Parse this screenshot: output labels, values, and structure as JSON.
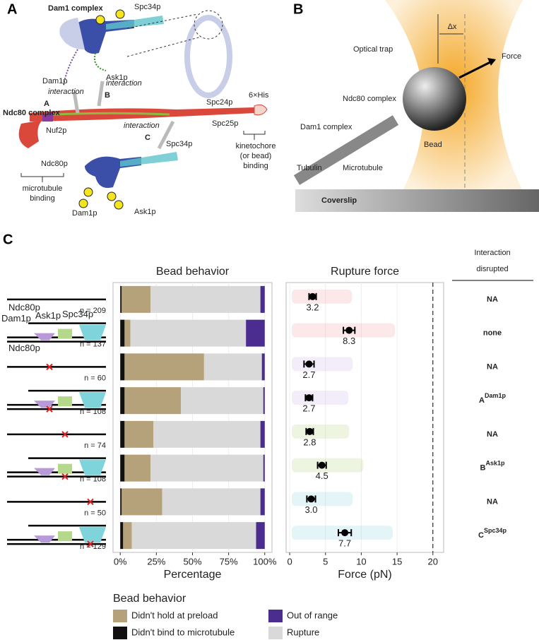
{
  "panel_a": {
    "letter": "A",
    "dam1_complex": "Dam1 complex",
    "spc34p_top": "Spc34p",
    "dam1p_top": "Dam1p",
    "ask1p_top": "Ask1p",
    "interaction_a": "interaction",
    "letter_a": "A",
    "interaction_b": "interaction",
    "letter_b": "B",
    "interaction_c": "interaction",
    "letter_c": "C",
    "ndc80_complex": "Ndc80 complex",
    "nuf2p": "Nuf2p",
    "ndc80p": "Ndc80p",
    "spc24p": "Spc24p",
    "spc25p": "Spc25p",
    "his": "6×His",
    "mt_binding": [
      "microtubule",
      "binding"
    ],
    "kt_binding": [
      "kinetochore",
      "(or bead)",
      "binding"
    ],
    "spc34p_bottom": "Spc34p",
    "dam1p_bottom": "Dam1p",
    "ask1p_bottom": "Ask1p"
  },
  "panel_b": {
    "letter": "B",
    "optical_trap": "Optical trap",
    "dx": "Δx",
    "force": "Force",
    "ndc80_complex": "Ndc80 complex",
    "dam1_complex": "Dam1 complex",
    "bead": "Bead",
    "tubulin": "Tubulin",
    "microtubule": "Microtubule",
    "coverslip": "Coverslip"
  },
  "panel_c": {
    "letter": "C",
    "construct_labels": {
      "ndc80p": "Ndc80p",
      "dam1p": "Dam1p",
      "ask1p": "Ask1p",
      "spc34p": "Spc34p",
      "ndc80p_2": "Ndc80p"
    },
    "interaction_title": [
      "Interaction",
      "disrupted"
    ],
    "interaction": [
      {
        "main": "NA"
      },
      {
        "main": "none"
      },
      {
        "main": "NA"
      },
      {
        "main": "A",
        "sup": "Dam1p"
      },
      {
        "main": "NA"
      },
      {
        "main": "B",
        "sup": "Ask1p"
      },
      {
        "main": "NA"
      },
      {
        "main": "C",
        "sup": "Spc34p"
      }
    ],
    "interaction_colors": [
      "#000",
      "#000",
      "#000",
      "#a98bd4",
      "#000",
      "#8dbb3f",
      "#000",
      "#5ec4cc"
    ]
  },
  "chart_data": [
    {
      "type": "stacked_barh",
      "title": "Bead behavior",
      "xlabel": "Percentage",
      "categories": [
        "n = 209",
        "n = 137",
        "n = 60",
        "n = 108",
        "n = 74",
        "n = 108",
        "n = 50",
        "n = 129"
      ],
      "series": [
        {
          "name": "Didn't bind to microtubule",
          "color": "#111111",
          "values": [
            1,
            3,
            3,
            3,
            3,
            3,
            1,
            2
          ]
        },
        {
          "name": "Didn't hold at preload",
          "color": "#b5a27a",
          "values": [
            20,
            4,
            55,
            39,
            20,
            18,
            28,
            6
          ]
        },
        {
          "name": "Rupture",
          "color": "#d9d9d9",
          "values": [
            76,
            80,
            40,
            57,
            74,
            78,
            68,
            86
          ]
        },
        {
          "name": "Out of range",
          "color": "#4b2d8f",
          "values": [
            3,
            13,
            2,
            1,
            3,
            1,
            3,
            6
          ]
        }
      ],
      "xlim": [
        -5,
        105
      ],
      "xticks": [
        {
          "value": 0,
          "label": "0%"
        },
        {
          "value": 25,
          "label": "25%"
        },
        {
          "value": 50,
          "label": "50%"
        },
        {
          "value": 75,
          "label": "75%"
        },
        {
          "value": 100,
          "label": "100%"
        }
      ],
      "legend_title": "Bead behavior",
      "grid": true
    },
    {
      "type": "dot_mean",
      "title": "Rupture force",
      "xlabel": "Force (pN)",
      "values": [
        3.2,
        8.3,
        2.7,
        2.7,
        2.8,
        4.5,
        3.0,
        7.7
      ],
      "value_labels": [
        "3.2",
        "8.3",
        "2.7",
        "2.7",
        "2.8",
        "4.5",
        "3.0",
        "7.7"
      ],
      "errors": [
        0.5,
        0.8,
        0.7,
        0.5,
        0.5,
        0.6,
        0.6,
        0.9
      ],
      "colors": [
        "#f08080",
        "#f08080",
        "#b99ad8",
        "#b99ad8",
        "#9dc55a",
        "#9dc55a",
        "#6cc9d0",
        "#6cc9d0"
      ],
      "xlim": [
        -0.5,
        21.5
      ],
      "xticks": [
        0,
        5,
        10,
        15,
        20
      ],
      "reference_line": 20,
      "grid": true
    }
  ]
}
